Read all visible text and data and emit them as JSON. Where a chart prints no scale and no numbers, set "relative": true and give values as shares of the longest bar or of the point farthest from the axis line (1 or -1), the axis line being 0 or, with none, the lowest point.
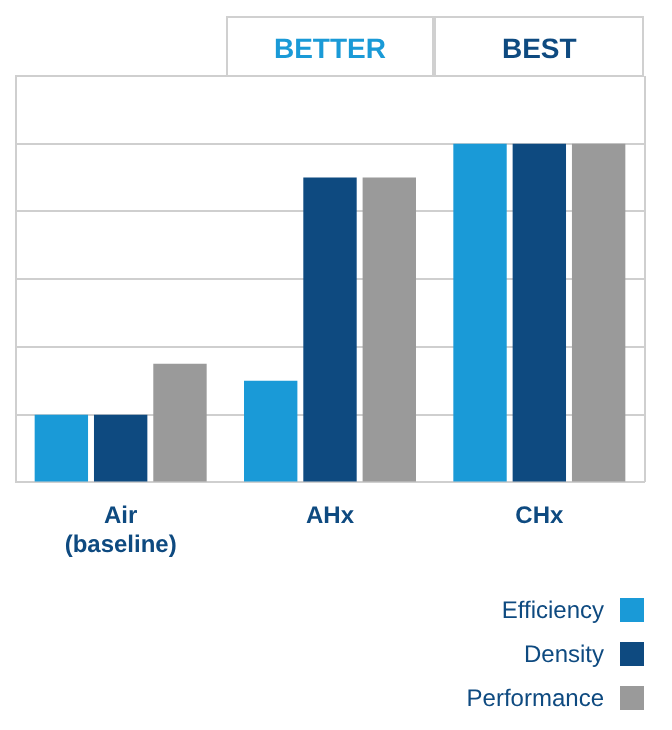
{
  "chart_data": {
    "type": "bar",
    "relative": true,
    "grid": "y",
    "legend": "bottom right",
    "tick_labels": "x",
    "categories": [
      "Air\n(baseline)",
      "AHx",
      "CHx"
    ],
    "series": [
      {
        "name": "Efficiency",
        "color": "#1a9ad7",
        "values": [
          0.2,
          0.3,
          1
        ]
      },
      {
        "name": "Density",
        "color": "#0e4a80",
        "values": [
          0.2,
          0.9,
          1
        ]
      },
      {
        "name": "Performance",
        "color": "#9a9a9a",
        "values": [
          0.35,
          0.9,
          1
        ]
      }
    ],
    "annotations": [
      "BETTER",
      "BEST"
    ]
  }
}
